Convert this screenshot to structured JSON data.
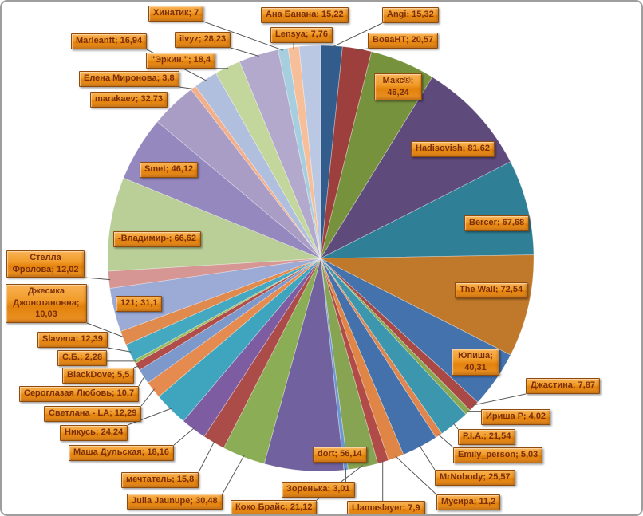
{
  "frame": {
    "background": "#FFFFFF",
    "border_color": "#9E9E9E"
  },
  "label_style": {
    "fill_top": "#F9B152",
    "fill_bottom": "#E3820C",
    "border_color": "#8F4B0C",
    "text_color": "#7B2E09",
    "leader_line_color": "#595959"
  },
  "chart_data": {
    "type": "pie",
    "title": "",
    "legend_position": "none",
    "start_angle_deg": 0,
    "direction": "clockwise",
    "label_format": "name; value (comma decimal separator)",
    "slices": [
      {
        "label": "Angi",
        "value": 15.32,
        "color": "#325C8C"
      },
      {
        "label": "ВоваНТ",
        "value": 20.57,
        "color": "#9C3F3D"
      },
      {
        "label": "Макс®",
        "value": 46.24,
        "color": "#77923D"
      },
      {
        "label": "Hadisovish",
        "value": 81.62,
        "color": "#5F4A7C"
      },
      {
        "label": "Bercer",
        "value": 67.68,
        "color": "#2F7F96"
      },
      {
        "label": "The Wall",
        "value": 72.54,
        "color": "#C0792B"
      },
      {
        "label": "Юпиша",
        "value": 40.31,
        "color": "#4472AC"
      },
      {
        "label": "Джастина",
        "value": 7.87,
        "color": "#A94844"
      },
      {
        "label": "Ириша Р",
        "value": 4.02,
        "color": "#8AA751"
      },
      {
        "label": "P.I.A.",
        "value": 21.54,
        "color": "#3C96AD"
      },
      {
        "label": "Emily_person",
        "value": 5.03,
        "color": "#E0854D"
      },
      {
        "label": "MrNobody",
        "value": 25.57,
        "color": "#4471AB"
      },
      {
        "label": "Мусира",
        "value": 11.2,
        "color": "#DF8546"
      },
      {
        "label": "Llamaslayer",
        "value": 7.9,
        "color": "#B14B47"
      },
      {
        "label": "Коко Брайс",
        "value": 21.12,
        "color": "#86A451"
      },
      {
        "label": "Зоренька",
        "value": 3.01,
        "color": "#6C96D2"
      },
      {
        "label": "dort",
        "value": 56.14,
        "color": "#71619E"
      },
      {
        "label": "Julia Jaunupe",
        "value": 30.48,
        "color": "#8BAD56"
      },
      {
        "label": "мечтатель",
        "value": 15.8,
        "color": "#AC4C49"
      },
      {
        "label": "Маша Дульская",
        "value": 18.16,
        "color": "#7D5CA2"
      },
      {
        "label": "Никусь",
        "value": 24.24,
        "color": "#3FA5BE"
      },
      {
        "label": "Светлана - LA",
        "value": 12.29,
        "color": "#E58B4F"
      },
      {
        "label": "Сероглазая Любовь",
        "value": 10.7,
        "color": "#7D98CB"
      },
      {
        "label": "BlackDove",
        "value": 5.5,
        "color": "#B04C49"
      },
      {
        "label": "С.Б.",
        "value": 2.28,
        "color": "#9CBA5A"
      },
      {
        "label": "Slavena",
        "value": 12.39,
        "color": "#44A8C1"
      },
      {
        "label": "Джесика Джонотановна",
        "value": 10.03,
        "color": "#E08A4D"
      },
      {
        "label": "121",
        "value": 31.1,
        "color": "#9BABD6"
      },
      {
        "label": "Стелла Фролова",
        "value": 12.02,
        "color": "#D59694"
      },
      {
        "label": "-Владимир-",
        "value": 66.62,
        "color": "#BACF97"
      },
      {
        "label": "Smet",
        "value": 46.12,
        "color": "#9588BE"
      },
      {
        "label": "marakaev",
        "value": 32.73,
        "color": "#A99DC5"
      },
      {
        "label": "Елена Миронова",
        "value": 3.8,
        "color": "#F3AF89"
      },
      {
        "label": "Marleanft",
        "value": 16.94,
        "color": "#AFBFDD"
      },
      {
        "label": "\"Эркин.\"",
        "value": 18.4,
        "color": "#C3D79C"
      },
      {
        "label": "ilvyz",
        "value": 28.23,
        "color": "#B2A9CC"
      },
      {
        "label": "Хинатик",
        "value": 7,
        "color": "#A7CEDF"
      },
      {
        "label": "Lensya",
        "value": 7.76,
        "color": "#F6BF99"
      },
      {
        "label": "Ана Банана",
        "value": 15.22,
        "color": "#BAC8E4"
      }
    ]
  }
}
